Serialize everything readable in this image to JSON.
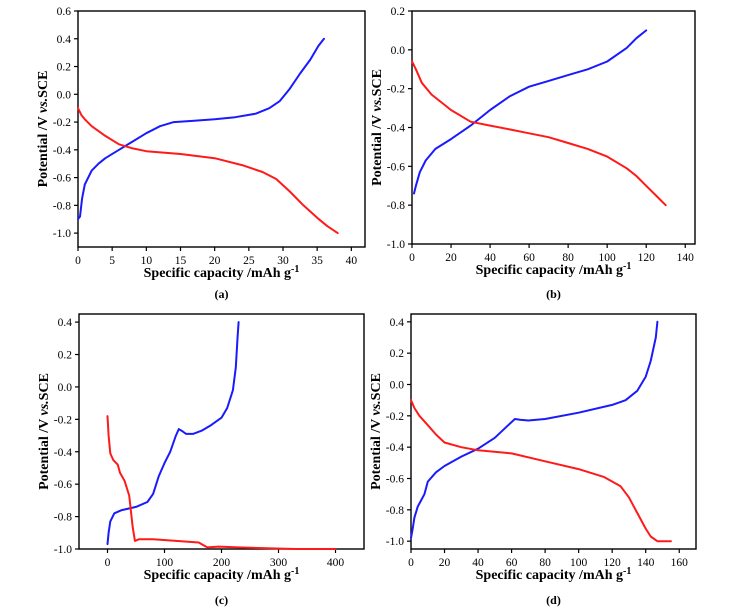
{
  "chart_data": [
    {
      "type": "line",
      "panel_label": "(a)",
      "xlabel": "Specific capacity /mAh g",
      "xlabel_sup": "-1",
      "ylabel_prefix": "Potential /V ",
      "ylabel_italic": "vs.",
      "ylabel_suffix": "SCE",
      "xlim": [
        0,
        42
      ],
      "ylim": [
        -1.1,
        0.6
      ],
      "xticks": [
        0,
        5,
        10,
        15,
        20,
        25,
        30,
        35,
        40
      ],
      "yticks": [
        -1.0,
        -0.8,
        -0.6,
        -0.4,
        -0.2,
        0.0,
        0.2,
        0.4,
        0.6
      ],
      "ytick_labels": [
        "-1.0",
        "-0.8",
        "-0.6",
        "-0.4",
        "-0.2",
        "0.0",
        "0.2",
        "0.4",
        "0.6"
      ],
      "series": [
        {
          "color": "#1a1aff",
          "points": [
            [
              0,
              -0.9
            ],
            [
              0.3,
              -0.88
            ],
            [
              0.6,
              -0.75
            ],
            [
              1,
              -0.65
            ],
            [
              2,
              -0.55
            ],
            [
              3,
              -0.5
            ],
            [
              4,
              -0.46
            ],
            [
              6,
              -0.4
            ],
            [
              8,
              -0.34
            ],
            [
              10,
              -0.28
            ],
            [
              12,
              -0.23
            ],
            [
              14,
              -0.2
            ],
            [
              17,
              -0.19
            ],
            [
              20,
              -0.18
            ],
            [
              23,
              -0.165
            ],
            [
              26,
              -0.14
            ],
            [
              28,
              -0.1
            ],
            [
              29.5,
              -0.05
            ],
            [
              31,
              0.04
            ],
            [
              32.5,
              0.15
            ],
            [
              34,
              0.25
            ],
            [
              35.2,
              0.35
            ],
            [
              36,
              0.4
            ]
          ]
        },
        {
          "color": "#ff1a1a",
          "points": [
            [
              0,
              -0.1
            ],
            [
              0.5,
              -0.15
            ],
            [
              1,
              -0.18
            ],
            [
              2,
              -0.23
            ],
            [
              4,
              -0.3
            ],
            [
              6,
              -0.36
            ],
            [
              8,
              -0.39
            ],
            [
              10,
              -0.41
            ],
            [
              15,
              -0.43
            ],
            [
              20,
              -0.46
            ],
            [
              24,
              -0.51
            ],
            [
              27,
              -0.56
            ],
            [
              29,
              -0.61
            ],
            [
              31,
              -0.7
            ],
            [
              33,
              -0.8
            ],
            [
              35,
              -0.89
            ],
            [
              36.5,
              -0.95
            ],
            [
              38,
              -1.0
            ]
          ]
        }
      ]
    },
    {
      "type": "line",
      "panel_label": "(b)",
      "xlabel": "Specific capacity /mAh g",
      "xlabel_sup": "-1",
      "ylabel_prefix": "Potential /V ",
      "ylabel_italic": "vs.",
      "ylabel_suffix": "SCE",
      "xlim": [
        0,
        145
      ],
      "ylim": [
        -1.0,
        0.2
      ],
      "xticks": [
        0,
        20,
        40,
        60,
        80,
        100,
        120,
        140
      ],
      "yticks": [
        -1.0,
        -0.8,
        -0.6,
        -0.4,
        -0.2,
        0.0,
        0.2
      ],
      "ytick_labels": [
        "-1.0",
        "-0.8",
        "-0.6",
        "-0.4",
        "-0.2",
        "0.0",
        "0.2"
      ],
      "series": [
        {
          "color": "#1a1aff",
          "points": [
            [
              1,
              -0.74
            ],
            [
              2,
              -0.7
            ],
            [
              4,
              -0.63
            ],
            [
              7,
              -0.57
            ],
            [
              12,
              -0.51
            ],
            [
              20,
              -0.46
            ],
            [
              30,
              -0.39
            ],
            [
              40,
              -0.31
            ],
            [
              50,
              -0.24
            ],
            [
              60,
              -0.19
            ],
            [
              70,
              -0.16
            ],
            [
              80,
              -0.13
            ],
            [
              90,
              -0.1
            ],
            [
              100,
              -0.06
            ],
            [
              110,
              0.01
            ],
            [
              115,
              0.06
            ],
            [
              120,
              0.1
            ]
          ]
        },
        {
          "color": "#ff1a1a",
          "points": [
            [
              0,
              -0.06
            ],
            [
              2,
              -0.1
            ],
            [
              5,
              -0.17
            ],
            [
              10,
              -0.23
            ],
            [
              20,
              -0.31
            ],
            [
              30,
              -0.37
            ],
            [
              40,
              -0.39
            ],
            [
              50,
              -0.41
            ],
            [
              60,
              -0.43
            ],
            [
              70,
              -0.45
            ],
            [
              80,
              -0.48
            ],
            [
              90,
              -0.51
            ],
            [
              100,
              -0.55
            ],
            [
              110,
              -0.61
            ],
            [
              115,
              -0.65
            ],
            [
              120,
              -0.7
            ],
            [
              125,
              -0.75
            ],
            [
              130,
              -0.8
            ]
          ]
        }
      ]
    },
    {
      "type": "line",
      "panel_label": "(c)",
      "xlabel": "Specific capacity /mAh g",
      "xlabel_sup": "-1",
      "ylabel_prefix": "Potential /V ",
      "ylabel_italic": "vs.",
      "ylabel_suffix": "SCE",
      "xlim": [
        -50,
        450
      ],
      "ylim": [
        -1.0,
        0.45
      ],
      "xticks": [
        0,
        100,
        200,
        300,
        400
      ],
      "yticks": [
        -1.0,
        -0.8,
        -0.6,
        -0.4,
        -0.2,
        0.0,
        0.2,
        0.4
      ],
      "ytick_labels": [
        "-1.0",
        "-0.8",
        "-0.6",
        "-0.4",
        "-0.2",
        "0.0",
        "0.2",
        "0.4"
      ],
      "series": [
        {
          "color": "#1a1aff",
          "points": [
            [
              0,
              -0.97
            ],
            [
              2,
              -0.9
            ],
            [
              5,
              -0.83
            ],
            [
              12,
              -0.78
            ],
            [
              25,
              -0.76
            ],
            [
              50,
              -0.74
            ],
            [
              70,
              -0.71
            ],
            [
              80,
              -0.66
            ],
            [
              90,
              -0.55
            ],
            [
              100,
              -0.47
            ],
            [
              110,
              -0.4
            ],
            [
              120,
              -0.3
            ],
            [
              125,
              -0.26
            ],
            [
              130,
              -0.27
            ],
            [
              138,
              -0.29
            ],
            [
              150,
              -0.29
            ],
            [
              165,
              -0.27
            ],
            [
              180,
              -0.24
            ],
            [
              200,
              -0.19
            ],
            [
              210,
              -0.13
            ],
            [
              220,
              -0.02
            ],
            [
              225,
              0.12
            ],
            [
              228,
              0.3
            ],
            [
              230,
              0.4
            ]
          ]
        },
        {
          "color": "#ff1a1a",
          "points": [
            [
              0,
              -0.18
            ],
            [
              2,
              -0.3
            ],
            [
              5,
              -0.41
            ],
            [
              10,
              -0.45
            ],
            [
              18,
              -0.48
            ],
            [
              22,
              -0.53
            ],
            [
              30,
              -0.58
            ],
            [
              38,
              -0.67
            ],
            [
              44,
              -0.86
            ],
            [
              48,
              -0.95
            ],
            [
              55,
              -0.94
            ],
            [
              80,
              -0.94
            ],
            [
              120,
              -0.95
            ],
            [
              160,
              -0.96
            ],
            [
              175,
              -0.99
            ],
            [
              195,
              -0.985
            ],
            [
              230,
              -0.99
            ],
            [
              280,
              -0.995
            ],
            [
              330,
              -1.0
            ],
            [
              400,
              -1.0
            ]
          ]
        }
      ]
    },
    {
      "type": "line",
      "panel_label": "(d)",
      "xlabel": "Specific capacity /mAh g",
      "xlabel_sup": "-1",
      "ylabel_prefix": "Potential /V ",
      "ylabel_italic": "vs.",
      "ylabel_suffix": "SCE",
      "xlim": [
        0,
        170
      ],
      "ylim": [
        -1.05,
        0.45
      ],
      "xticks": [
        0,
        20,
        40,
        60,
        80,
        100,
        120,
        140,
        160
      ],
      "yticks": [
        -1.0,
        -0.8,
        -0.6,
        -0.4,
        -0.2,
        0.0,
        0.2,
        0.4
      ],
      "ytick_labels": [
        "-1.0",
        "-0.8",
        "-0.6",
        "-0.4",
        "-0.2",
        "0.0",
        "0.2",
        "0.4"
      ],
      "series": [
        {
          "color": "#1a1aff",
          "points": [
            [
              0,
              -0.98
            ],
            [
              1,
              -0.92
            ],
            [
              2,
              -0.85
            ],
            [
              4,
              -0.78
            ],
            [
              6,
              -0.74
            ],
            [
              8,
              -0.7
            ],
            [
              10,
              -0.62
            ],
            [
              15,
              -0.56
            ],
            [
              20,
              -0.52
            ],
            [
              30,
              -0.46
            ],
            [
              40,
              -0.41
            ],
            [
              50,
              -0.34
            ],
            [
              58,
              -0.26
            ],
            [
              62,
              -0.22
            ],
            [
              65,
              -0.225
            ],
            [
              70,
              -0.23
            ],
            [
              80,
              -0.22
            ],
            [
              100,
              -0.18
            ],
            [
              120,
              -0.13
            ],
            [
              128,
              -0.1
            ],
            [
              135,
              -0.04
            ],
            [
              140,
              0.05
            ],
            [
              143,
              0.15
            ],
            [
              146,
              0.3
            ],
            [
              147,
              0.4
            ]
          ]
        },
        {
          "color": "#ff1a1a",
          "points": [
            [
              0,
              -0.1
            ],
            [
              2,
              -0.15
            ],
            [
              5,
              -0.2
            ],
            [
              10,
              -0.26
            ],
            [
              15,
              -0.32
            ],
            [
              20,
              -0.37
            ],
            [
              30,
              -0.4
            ],
            [
              40,
              -0.42
            ],
            [
              60,
              -0.44
            ],
            [
              80,
              -0.49
            ],
            [
              100,
              -0.54
            ],
            [
              115,
              -0.59
            ],
            [
              125,
              -0.65
            ],
            [
              130,
              -0.72
            ],
            [
              135,
              -0.82
            ],
            [
              140,
              -0.92
            ],
            [
              143,
              -0.97
            ],
            [
              147,
              -1.0
            ],
            [
              155,
              -1.0
            ]
          ]
        }
      ]
    }
  ]
}
